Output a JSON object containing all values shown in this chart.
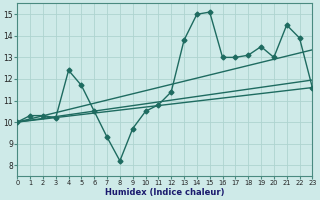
{
  "xlabel": "Humidex (Indice chaleur)",
  "xlim": [
    0,
    23
  ],
  "ylim": [
    7.5,
    15.5
  ],
  "xticks": [
    0,
    1,
    2,
    3,
    4,
    5,
    6,
    7,
    8,
    9,
    10,
    11,
    12,
    13,
    14,
    15,
    16,
    17,
    18,
    19,
    20,
    21,
    22,
    23
  ],
  "yticks": [
    8,
    9,
    10,
    11,
    12,
    13,
    14,
    15
  ],
  "bg_color": "#ceeae8",
  "grid_color": "#aed4d0",
  "line_color": "#1e6b60",
  "line_width": 1.0,
  "marker_size": 2.5,
  "series_x": [
    0,
    1,
    2,
    3,
    4,
    5,
    6,
    7,
    8,
    9,
    10,
    11,
    12,
    13,
    14,
    15,
    16,
    17,
    18,
    19,
    20,
    21,
    22,
    23
  ],
  "series_y": [
    10.0,
    10.3,
    10.3,
    10.2,
    12.4,
    11.7,
    10.5,
    9.3,
    8.2,
    9.7,
    10.5,
    10.8,
    11.4,
    13.8,
    15.0,
    15.1,
    13.0,
    13.0,
    13.1,
    13.5,
    13.0,
    14.5,
    13.9,
    11.6
  ],
  "line1": {
    "x": [
      0,
      23
    ],
    "y": [
      10.0,
      11.6
    ]
  },
  "line2": {
    "x": [
      0,
      23
    ],
    "y": [
      10.0,
      13.35
    ]
  },
  "line3": {
    "x": [
      0,
      23
    ],
    "y": [
      10.0,
      11.95
    ]
  }
}
